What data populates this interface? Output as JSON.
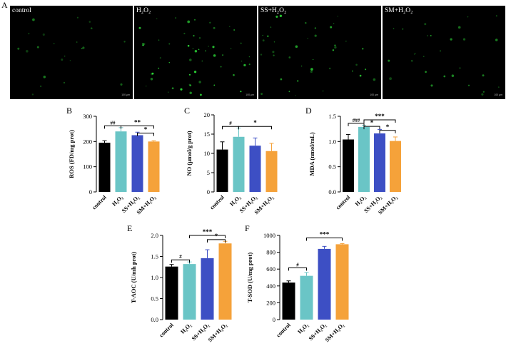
{
  "figure_label": "A",
  "micrographs": [
    {
      "label": "control",
      "scale_text": "100 μm",
      "cell_count": 22,
      "bright": 0.55
    },
    {
      "label": "H₂O₂",
      "scale_text": "100 μm",
      "cell_count": 55,
      "bright": 0.95
    },
    {
      "label": "SS+H₂O₂",
      "scale_text": "100 μm",
      "cell_count": 40,
      "bright": 0.85
    },
    {
      "label": "SM+H₂O₂",
      "scale_text": "100 μm",
      "cell_count": 28,
      "bright": 0.7
    }
  ],
  "colors": {
    "control": "#000000",
    "h2o2": "#6ac5c6",
    "ss": "#3d4fc4",
    "sm": "#f5a23a",
    "cells": "#2ee23a"
  },
  "chart_data": [
    {
      "panel": "B",
      "type": "bar",
      "ylabel": "ROS (FD/mg prot)",
      "categories": [
        "control",
        "H₂O₂",
        "SS+H₂O₂",
        "SM+H₂O₂"
      ],
      "values": [
        195,
        240,
        225,
        200
      ],
      "errors": [
        8,
        15,
        12,
        3
      ],
      "ylim": [
        0,
        300
      ],
      "yticks": [
        0,
        100,
        200,
        300
      ],
      "significance": [
        {
          "from": 0,
          "to": 1,
          "label": "##",
          "level": 262
        },
        {
          "from": 1,
          "to": 3,
          "label": "**",
          "level": 262
        },
        {
          "from": 2,
          "to": 3,
          "label": "*",
          "level": 233
        }
      ]
    },
    {
      "panel": "C",
      "type": "bar",
      "ylabel": "NO (μmol/g prot)",
      "categories": [
        "control",
        "H₂O₂",
        "SS+H₂O₂",
        "SM+H₂O₂"
      ],
      "values": [
        11.0,
        14.3,
        12.0,
        10.6
      ],
      "errors": [
        2.0,
        2.3,
        2.0,
        2.0
      ],
      "ylim": [
        0,
        20
      ],
      "yticks": [
        0,
        5,
        10,
        15,
        20
      ],
      "significance": [
        {
          "from": 0,
          "to": 1,
          "label": "#",
          "level": 17.0
        },
        {
          "from": 1,
          "to": 3,
          "label": "*",
          "level": 17.0
        }
      ]
    },
    {
      "panel": "D",
      "type": "bar",
      "ylabel": "MDA (nmol/mL)",
      "categories": [
        "control",
        "H₂O₂",
        "SS+H₂O₂",
        "SM+H₂O₂"
      ],
      "values": [
        1.04,
        1.29,
        1.16,
        1.01
      ],
      "errors": [
        0.1,
        0.03,
        0.08,
        0.08
      ],
      "ylim": [
        0,
        1.5
      ],
      "yticks": [
        0.0,
        0.5,
        1.0,
        1.5
      ],
      "significance": [
        {
          "from": 0,
          "to": 1,
          "label": "###",
          "level": 1.36
        },
        {
          "from": 1,
          "to": 2,
          "label": "*",
          "level": 1.3
        },
        {
          "from": 1,
          "to": 3,
          "label": "***",
          "level": 1.43
        },
        {
          "from": 2,
          "to": 3,
          "label": "*",
          "level": 1.22
        }
      ]
    },
    {
      "panel": "E",
      "type": "bar",
      "ylabel": "T-AOC (U/mh prot)",
      "categories": [
        "control",
        "H₂O₂",
        "SS+H₂O₂",
        "SM+H₂O₂"
      ],
      "values": [
        1.26,
        1.32,
        1.46,
        1.81
      ],
      "errors": [
        0.05,
        0.05,
        0.2,
        0.05
      ],
      "ylim": [
        0,
        2.0
      ],
      "yticks": [
        0.0,
        0.5,
        1.0,
        1.5,
        2.0
      ],
      "significance": [
        {
          "from": 0,
          "to": 1,
          "label": "#",
          "level": 1.42
        },
        {
          "from": 1,
          "to": 3,
          "label": "***",
          "level": 2.0
        },
        {
          "from": 2,
          "to": 3,
          "label": "*",
          "level": 1.9
        }
      ]
    },
    {
      "panel": "F",
      "type": "bar",
      "ylabel": "T-SOD (U/mg prot)",
      "categories": [
        "control",
        "H₂O₂",
        "SS+H₂O₂",
        "SM+H₂O₂"
      ],
      "values": [
        440,
        520,
        840,
        895
      ],
      "errors": [
        20,
        40,
        30,
        8
      ],
      "ylim": [
        0,
        1000
      ],
      "yticks": [
        0,
        200,
        400,
        600,
        800,
        1000
      ],
      "significance": [
        {
          "from": 0,
          "to": 1,
          "label": "#",
          "level": 615
        },
        {
          "from": 1,
          "to": 3,
          "label": "***",
          "level": 970
        }
      ]
    }
  ]
}
